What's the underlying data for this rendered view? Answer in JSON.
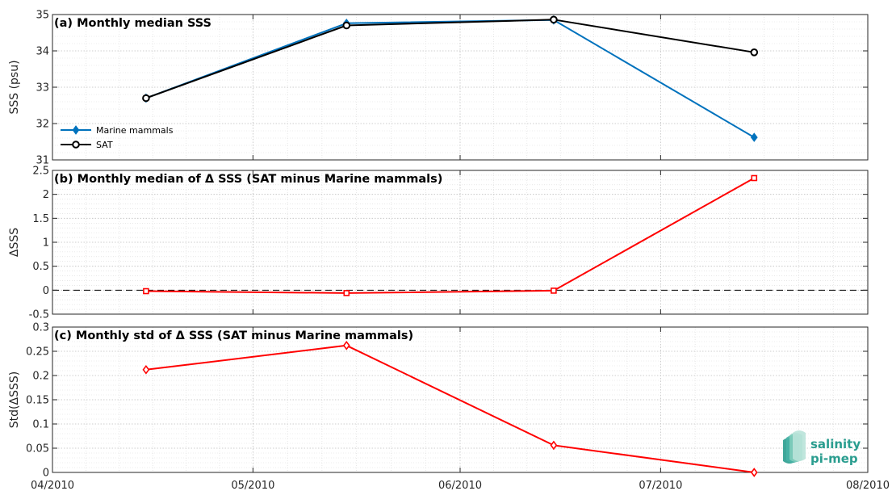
{
  "chart_data": [
    {
      "type": "line",
      "title": "(a) Monthly median SSS",
      "ylabel": "SSS (psu)",
      "ylim": [
        31,
        35
      ],
      "yticks": [
        "31",
        "32",
        "33",
        "34",
        "35"
      ],
      "grid": true,
      "legend_placement": "lower-left",
      "series": [
        {
          "name": "Marine mammals",
          "color": "#0072bd",
          "marker": "diamond",
          "x": [
            "2010-04-15",
            "2010-05-15",
            "2010-06-15",
            "2010-07-15"
          ],
          "values": [
            32.7,
            34.76,
            34.85,
            31.62
          ]
        },
        {
          "name": "SAT",
          "color": "#000000",
          "marker": "circle",
          "x": [
            "2010-04-15",
            "2010-05-15",
            "2010-06-15",
            "2010-07-15"
          ],
          "values": [
            32.7,
            34.7,
            34.86,
            33.96
          ]
        }
      ]
    },
    {
      "type": "line",
      "title": "(b) Monthly median of Δ SSS (SAT minus Marine mammals)",
      "ylabel": "ΔSSS",
      "ylim": [
        -0.5,
        2.5
      ],
      "yticks": [
        "-0.5",
        "0",
        "0.5",
        "1",
        "1.5",
        "2",
        "2.5"
      ],
      "zero_line": true,
      "grid": true,
      "series": [
        {
          "color": "#ff0000",
          "marker": "square",
          "x": [
            "2010-04-15",
            "2010-05-15",
            "2010-06-15",
            "2010-07-15"
          ],
          "values": [
            -0.02,
            -0.06,
            -0.01,
            2.34
          ]
        }
      ]
    },
    {
      "type": "line",
      "title": "(c) Monthly std of Δ SSS (SAT minus Marine mammals)",
      "ylabel": "Std(ΔSSS)",
      "ylim": [
        0,
        0.3
      ],
      "yticks": [
        "0",
        "0.05",
        "0.1",
        "0.15",
        "0.2",
        "0.25",
        "0.3"
      ],
      "grid": true,
      "series": [
        {
          "color": "#ff0000",
          "marker": "diamond",
          "x": [
            "2010-04-15",
            "2010-05-15",
            "2010-06-15",
            "2010-07-15"
          ],
          "values": [
            0.212,
            0.262,
            0.056,
            0.0
          ]
        }
      ]
    }
  ],
  "x_axis": {
    "range": [
      "2010-04-01",
      "2010-08-01"
    ],
    "ticks": [
      {
        "date": "2010-04-01",
        "label": "04/2010"
      },
      {
        "date": "2010-05-01",
        "label": "05/2010"
      },
      {
        "date": "2010-06-01",
        "label": "06/2010"
      },
      {
        "date": "2010-07-01",
        "label": "07/2010"
      },
      {
        "date": "2010-08-01",
        "label": "08/2010"
      }
    ]
  },
  "logo": {
    "line1": "salinity",
    "line2": "pi-mep",
    "color": "#2a9d8f"
  }
}
